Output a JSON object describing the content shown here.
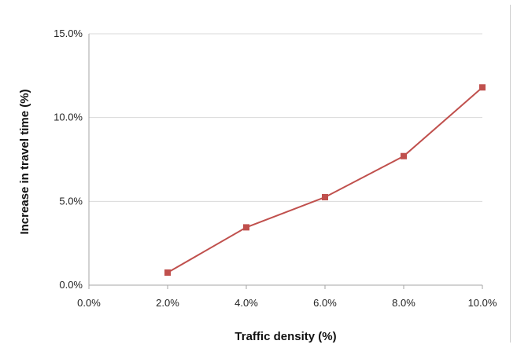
{
  "chart_data": {
    "type": "line",
    "title": "",
    "xlabel": "Traffic density (%)",
    "ylabel": "Increase in travel time (%)",
    "xlim": [
      0,
      10
    ],
    "ylim": [
      0,
      15
    ],
    "x_ticks": [
      "0.0%",
      "2.0%",
      "4.0%",
      "6.0%",
      "8.0%",
      "10.0%"
    ],
    "y_ticks": [
      "0.0%",
      "5.0%",
      "10.0%",
      "15.0%"
    ],
    "grid": "horizontal",
    "series": [
      {
        "color": "#c0504d",
        "marker": "square",
        "x": [
          2,
          4,
          6,
          8,
          10
        ],
        "y": [
          0.75,
          3.45,
          5.25,
          7.7,
          11.8
        ]
      }
    ]
  }
}
